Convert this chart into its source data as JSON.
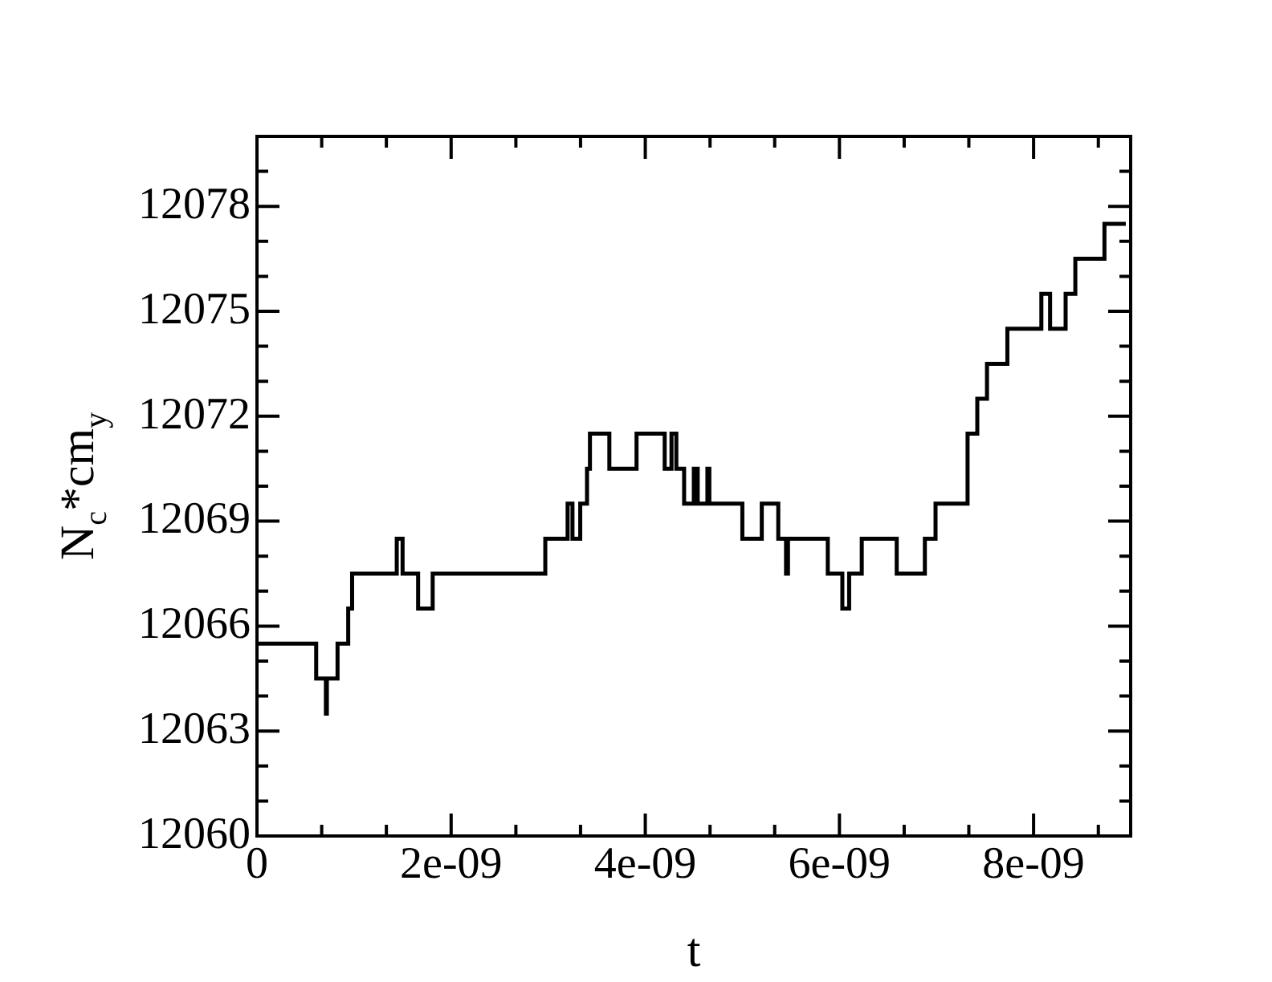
{
  "chart_data": {
    "type": "step",
    "xlabel": "t",
    "ylabel": "N$_{c}$*cm$_{y}$",
    "x": [
      0,
      6.1e-10,
      7.1e-10,
      7.2e-10,
      8.3e-10,
      9.4e-10,
      9.8e-10,
      1.44e-09,
      1.5e-09,
      1.66e-09,
      1.81e-09,
      2.97e-09,
      3.2e-09,
      3.25e-09,
      3.33e-09,
      3.4e-09,
      3.43e-09,
      3.63e-09,
      3.91e-09,
      4.2e-09,
      4.27e-09,
      4.32e-09,
      4.4e-09,
      4.5e-09,
      4.54e-09,
      4.64e-09,
      4.66e-09,
      5e-09,
      5.2e-09,
      5.37e-09,
      5.45e-09,
      5.47e-09,
      5.88e-09,
      6.03e-09,
      6.1e-09,
      6.23e-09,
      6.59e-09,
      6.88e-09,
      6.99e-09,
      7.32e-09,
      7.42e-09,
      7.52e-09,
      7.73e-09,
      8.08e-09,
      8.17e-09,
      8.33e-09,
      8.43e-09,
      8.73e-09,
      8.95e-09
    ],
    "series": [
      {
        "color": "#000000",
        "values": [
          12065.5,
          12064.5,
          12063.5,
          12064.5,
          12065.5,
          12066.5,
          12067.5,
          12068.5,
          12067.5,
          12066.5,
          12067.5,
          12068.5,
          12069.5,
          12068.5,
          12069.5,
          12070.5,
          12071.5,
          12070.5,
          12071.5,
          12070.5,
          12071.5,
          12070.5,
          12069.5,
          12070.5,
          12069.5,
          12070.5,
          12069.5,
          12068.5,
          12069.5,
          12068.5,
          12067.5,
          12068.5,
          12067.5,
          12066.5,
          12067.5,
          12068.5,
          12067.5,
          12068.5,
          12069.5,
          12071.5,
          12072.5,
          12073.5,
          12074.5,
          12075.5,
          12074.5,
          12075.5,
          12076.5,
          12077.5,
          12077.5
        ]
      }
    ],
    "xlim": [
      0,
      9e-09
    ],
    "xticks": [
      {
        "value": 0,
        "label": "0"
      },
      {
        "value": 6.667e-10,
        "label": null
      },
      {
        "value": 1.333e-09,
        "label": null
      },
      {
        "value": 2e-09,
        "label": "2e-09"
      },
      {
        "value": 2.667e-09,
        "label": null
      },
      {
        "value": 3.333e-09,
        "label": null
      },
      {
        "value": 4e-09,
        "label": "4e-09"
      },
      {
        "value": 4.667e-09,
        "label": null
      },
      {
        "value": 5.333e-09,
        "label": null
      },
      {
        "value": 6e-09,
        "label": "6e-09"
      },
      {
        "value": 6.667e-09,
        "label": null
      },
      {
        "value": 7.333e-09,
        "label": null
      },
      {
        "value": 8e-09,
        "label": "8e-09"
      },
      {
        "value": 8.667e-09,
        "label": null
      }
    ],
    "ylim": [
      12060,
      12080
    ],
    "yticks": [
      12060,
      {
        "value": 12061,
        "label": null
      },
      {
        "value": 12062,
        "label": null
      },
      12063,
      {
        "value": 12064,
        "label": null
      },
      {
        "value": 12065,
        "label": null
      },
      12066,
      {
        "value": 12067,
        "label": null
      },
      {
        "value": 12068,
        "label": null
      },
      12069,
      {
        "value": 12070,
        "label": null
      },
      {
        "value": 12071,
        "label": null
      },
      12072,
      {
        "value": 12073,
        "label": null
      },
      {
        "value": 12074,
        "label": null
      },
      12075,
      {
        "value": 12076,
        "label": null
      },
      {
        "value": 12077,
        "label": null
      },
      12078,
      {
        "value": 12079,
        "label": null
      }
    ],
    "grid": false,
    "legend": false,
    "marker": "none",
    "line_style": "solid"
  }
}
